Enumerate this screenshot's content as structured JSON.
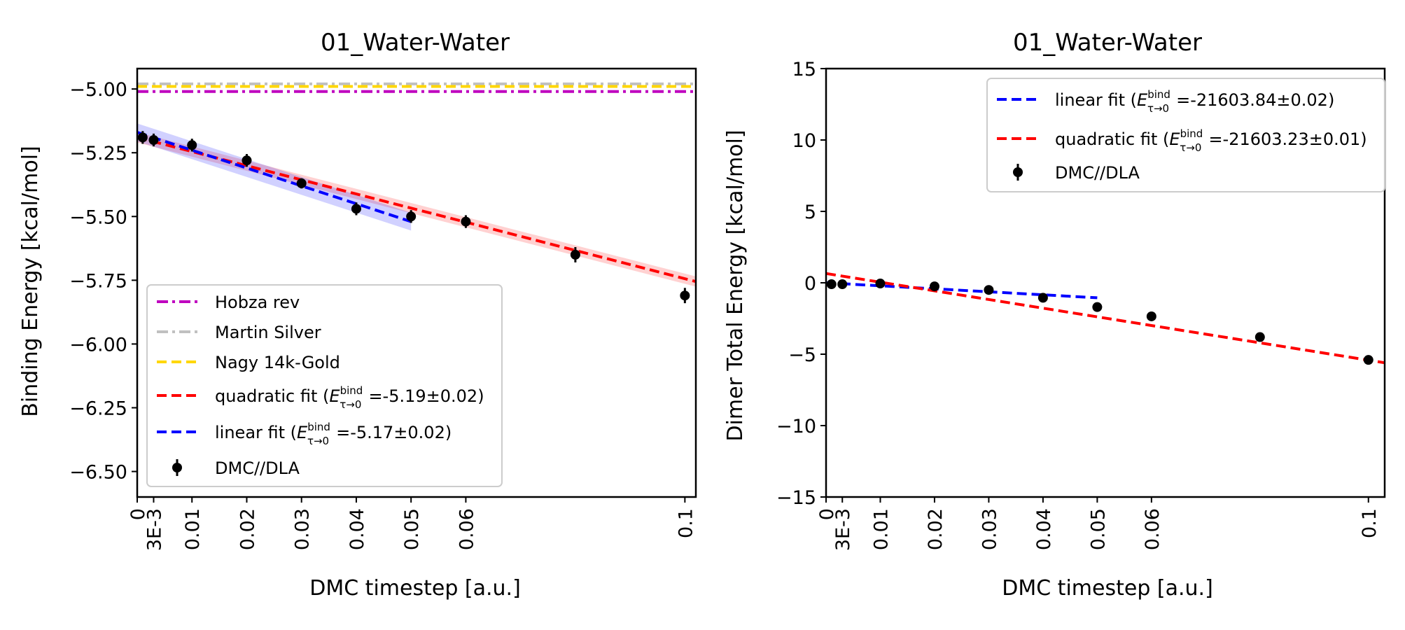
{
  "chart_data": [
    {
      "type": "scatter",
      "title": "01_Water-Water",
      "xlabel": "DMC timestep [a.u.]",
      "ylabel": "Binding Energy [kcal/mol]",
      "xlim": [
        0,
        0.102
      ],
      "ylim": [
        -6.6,
        -4.92
      ],
      "xticks": [
        0,
        0.003,
        0.01,
        0.02,
        0.03,
        0.04,
        0.05,
        0.06,
        0.1
      ],
      "xtick_labels": [
        "0",
        "3E-3",
        "0.01",
        "0.02",
        "0.03",
        "0.04",
        "0.05",
        "0.06",
        "0.1"
      ],
      "yticks": [
        -6.5,
        -6.25,
        -6.0,
        -5.75,
        -5.5,
        -5.25,
        -5.0
      ],
      "ytick_labels": [
        "−6.50",
        "−6.25",
        "−6.00",
        "−5.75",
        "−5.50",
        "−5.25",
        "−5.00"
      ],
      "legend_position": "lower-left",
      "reference_lines": [
        {
          "name": "Hobza rev",
          "y": -5.01,
          "color": "#bf00bf",
          "style": "dashdot"
        },
        {
          "name": "Martin Silver",
          "y": -4.98,
          "color": "#c0c0c0",
          "style": "dashdot"
        },
        {
          "name": "Nagy 14k-Gold",
          "y": -4.99,
          "color": "#ffd700",
          "style": "dashed"
        }
      ],
      "fits": [
        {
          "name": "quadratic fit",
          "value_text": "=-5.19±0.02",
          "color": "#ff0000",
          "x": [
            0,
            0.102
          ],
          "y": [
            -5.19,
            -5.755
          ],
          "band": 0.02
        },
        {
          "name": "linear fit",
          "value_text": "=-5.17±0.02",
          "color": "#0000ff",
          "x": [
            0,
            0.05
          ],
          "y": [
            -5.17,
            -5.52
          ],
          "band": 0.035
        }
      ],
      "series": [
        {
          "name": "DMC//DLA",
          "x": [
            0.001,
            0.003,
            0.01,
            0.02,
            0.03,
            0.04,
            0.05,
            0.06,
            0.08,
            0.1
          ],
          "y": [
            -5.19,
            -5.2,
            -5.22,
            -5.28,
            -5.37,
            -5.47,
            -5.5,
            -5.52,
            -5.65,
            -5.81
          ],
          "yerr": [
            0.025,
            0.025,
            0.025,
            0.025,
            0.02,
            0.025,
            0.025,
            0.025,
            0.03,
            0.03
          ]
        }
      ]
    },
    {
      "type": "scatter",
      "title": "01_Water-Water",
      "xlabel": "DMC timestep [a.u.]",
      "ylabel": "Dimer Total Energy [kcal/mol]",
      "xlim": [
        0,
        0.103
      ],
      "ylim": [
        -15,
        15
      ],
      "xticks": [
        0,
        0.003,
        0.01,
        0.02,
        0.03,
        0.04,
        0.05,
        0.06,
        0.1
      ],
      "xtick_labels": [
        "0",
        "3E-3",
        "0.01",
        "0.02",
        "0.03",
        "0.04",
        "0.05",
        "0.06",
        "0.1"
      ],
      "yticks": [
        -15,
        -10,
        -5,
        0,
        5,
        10,
        15
      ],
      "ytick_labels": [
        "−15",
        "−10",
        "−5",
        "0",
        "5",
        "10",
        "15"
      ],
      "legend_position": "upper-right",
      "fits": [
        {
          "name": "linear fit",
          "value_text": "=-21603.84±0.02",
          "color": "#0000ff",
          "x": [
            0,
            0.05
          ],
          "y": [
            0,
            -1.05
          ]
        },
        {
          "name": "quadratic fit",
          "value_text": "=-21603.23±0.01",
          "color": "#ff0000",
          "x": [
            0,
            0.103
          ],
          "y": [
            0.65,
            -5.6
          ]
        }
      ],
      "series": [
        {
          "name": "DMC//DLA",
          "x": [
            0.001,
            0.003,
            0.01,
            0.02,
            0.03,
            0.04,
            0.05,
            0.06,
            0.08,
            0.1
          ],
          "y": [
            -0.1,
            -0.1,
            -0.05,
            -0.25,
            -0.5,
            -1.05,
            -1.7,
            -2.35,
            -3.8,
            -5.4
          ],
          "yerr": [
            0.05,
            0.05,
            0.05,
            0.05,
            0.05,
            0.05,
            0.05,
            0.05,
            0.05,
            0.05
          ]
        }
      ]
    }
  ],
  "legend_sub": {
    "superscript": "bind",
    "subscript": "τ→0",
    "symbol": "E"
  },
  "colors": {
    "axis": "#000000",
    "legend_border": "#cccccc",
    "points": "#000000"
  }
}
